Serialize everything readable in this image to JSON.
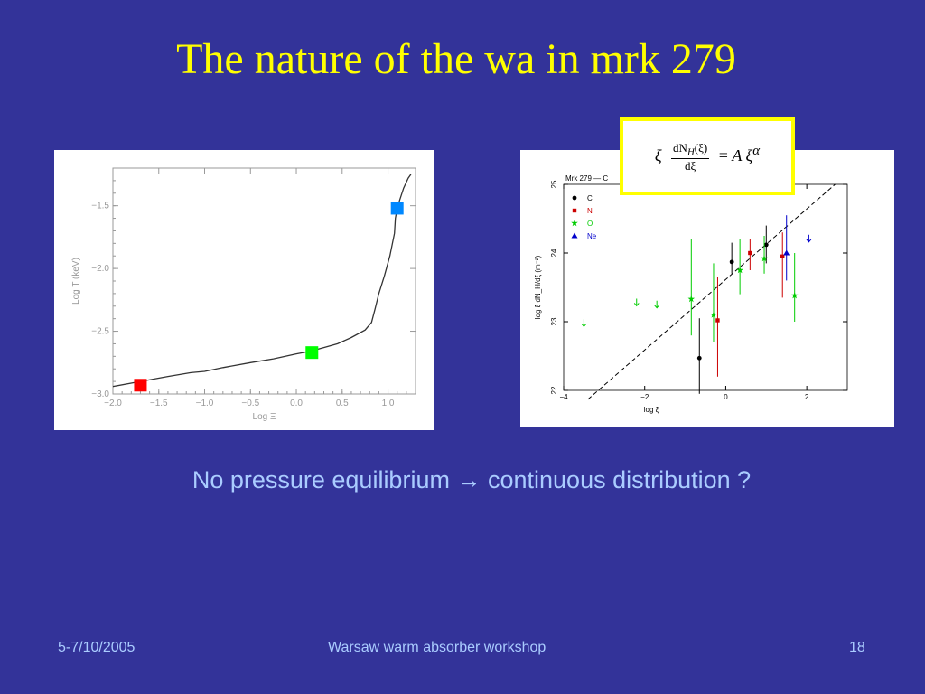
{
  "slide": {
    "title": "The nature of the wa in mrk 279",
    "caption_left": "No pressure equilibrium",
    "caption_arrow": "→",
    "caption_right": "continuous distribution ?",
    "footer_date": "5-7/10/2005",
    "footer_event": "Warsaw warm absorber workshop",
    "footer_page": "18",
    "colors": {
      "background": "#333399",
      "title": "#ffff00",
      "text": "#aaccff"
    }
  },
  "formula": {
    "lhs": "ξ",
    "num": "dN",
    "num_sub": "H",
    "num_arg": "(ξ)",
    "den": "dξ",
    "eq": "=",
    "rhs": "A ξ",
    "rhs_sup": "α"
  },
  "chart_data": [
    {
      "type": "line",
      "xlabel": "Log Ξ",
      "ylabel": "Log T (keV)",
      "xlim": [
        -2.0,
        1.3
      ],
      "ylim": [
        -3.0,
        -1.2
      ],
      "xticks": [
        -2.0,
        -1.5,
        -1.0,
        -0.5,
        0.0,
        0.5,
        1.0
      ],
      "xtick_labels": [
        "−2.0",
        "−1.5",
        "−1.0",
        "−0.5",
        "0.0",
        "0.5",
        "1.0"
      ],
      "yticks": [
        -3.0,
        -2.5,
        -2.0,
        -1.5
      ],
      "ytick_labels": [
        "−3.0",
        "−2.5",
        "−2.0",
        "−1.5"
      ],
      "curve": {
        "x": [
          -2.0,
          -1.7,
          -1.4,
          -1.15,
          -1.0,
          -0.8,
          -0.5,
          -0.25,
          0.0,
          0.15,
          0.3,
          0.45,
          0.6,
          0.75,
          0.82,
          0.86,
          0.9,
          0.96,
          1.02,
          1.07,
          1.08,
          1.1,
          1.13,
          1.17,
          1.22,
          1.25
        ],
        "y": [
          -2.94,
          -2.9,
          -2.86,
          -2.83,
          -2.82,
          -2.79,
          -2.75,
          -2.72,
          -2.68,
          -2.66,
          -2.63,
          -2.6,
          -2.55,
          -2.49,
          -2.43,
          -2.32,
          -2.2,
          -2.06,
          -1.9,
          -1.72,
          -1.6,
          -1.52,
          -1.45,
          -1.36,
          -1.28,
          -1.25
        ]
      },
      "markers": [
        {
          "x": -1.7,
          "y": -2.93,
          "color": "#ff0000"
        },
        {
          "x": 0.17,
          "y": -2.67,
          "color": "#00ff00"
        },
        {
          "x": 1.1,
          "y": -1.52,
          "color": "#0088ff"
        }
      ]
    },
    {
      "type": "scatter",
      "title": "Mrk 279 — C",
      "xlabel": "log ξ",
      "ylabel": "log ξ dN_H/dξ (m⁻²)",
      "xlim": [
        -4,
        3
      ],
      "ylim": [
        22,
        25
      ],
      "xticks": [
        -4,
        -2,
        0,
        2
      ],
      "xtick_labels": [
        "−4",
        "−2",
        "0",
        "2"
      ],
      "yticks": [
        22,
        23,
        24,
        25
      ],
      "ytick_labels": [
        "22",
        "23",
        "24",
        "25"
      ],
      "fit_line": {
        "x": [
          -3.4,
          2.7
        ],
        "y": [
          21.87,
          25.0
        ]
      },
      "series": [
        {
          "name": "C",
          "color": "#000000",
          "marker": "circle",
          "points": [
            {
              "x": -0.65,
              "y": 22.47,
              "lo": 21.95,
              "hi": 23.05
            },
            {
              "x": 0.15,
              "y": 23.87,
              "lo": 23.7,
              "hi": 24.15
            },
            {
              "x": 1.0,
              "y": 24.12,
              "lo": 23.85,
              "hi": 24.4
            }
          ]
        },
        {
          "name": "N",
          "color": "#cc0000",
          "marker": "square",
          "points": [
            {
              "x": -0.2,
              "y": 23.02,
              "lo": 22.2,
              "hi": 23.65
            },
            {
              "x": 0.6,
              "y": 24.0,
              "lo": 23.75,
              "hi": 24.2
            },
            {
              "x": 1.4,
              "y": 23.95,
              "lo": 23.35,
              "hi": 24.3
            }
          ]
        },
        {
          "name": "O",
          "color": "#00cc00",
          "marker": "star",
          "points": [
            {
              "x": -0.85,
              "y": 23.33,
              "lo": 22.8,
              "hi": 24.2
            },
            {
              "x": -0.3,
              "y": 23.1,
              "lo": 22.7,
              "hi": 23.85
            },
            {
              "x": 0.35,
              "y": 23.75,
              "lo": 23.4,
              "hi": 24.2
            },
            {
              "x": 0.95,
              "y": 23.92,
              "lo": 23.7,
              "hi": 24.25
            },
            {
              "x": 1.7,
              "y": 23.38,
              "lo": 23.0,
              "hi": 24.0
            }
          ]
        },
        {
          "name": "Ne",
          "color": "#0000cc",
          "marker": "triangle",
          "points": [
            {
              "x": 1.5,
              "y": 24.0,
              "lo": 23.6,
              "hi": 24.55
            }
          ]
        }
      ],
      "upper_limits": [
        {
          "x": -3.5,
          "y": 22.97,
          "color": "#00cc00"
        },
        {
          "x": -2.2,
          "y": 23.27,
          "color": "#00cc00"
        },
        {
          "x": -1.7,
          "y": 23.24,
          "color": "#00cc00"
        },
        {
          "x": 2.05,
          "y": 24.2,
          "color": "#0000cc"
        }
      ]
    }
  ]
}
